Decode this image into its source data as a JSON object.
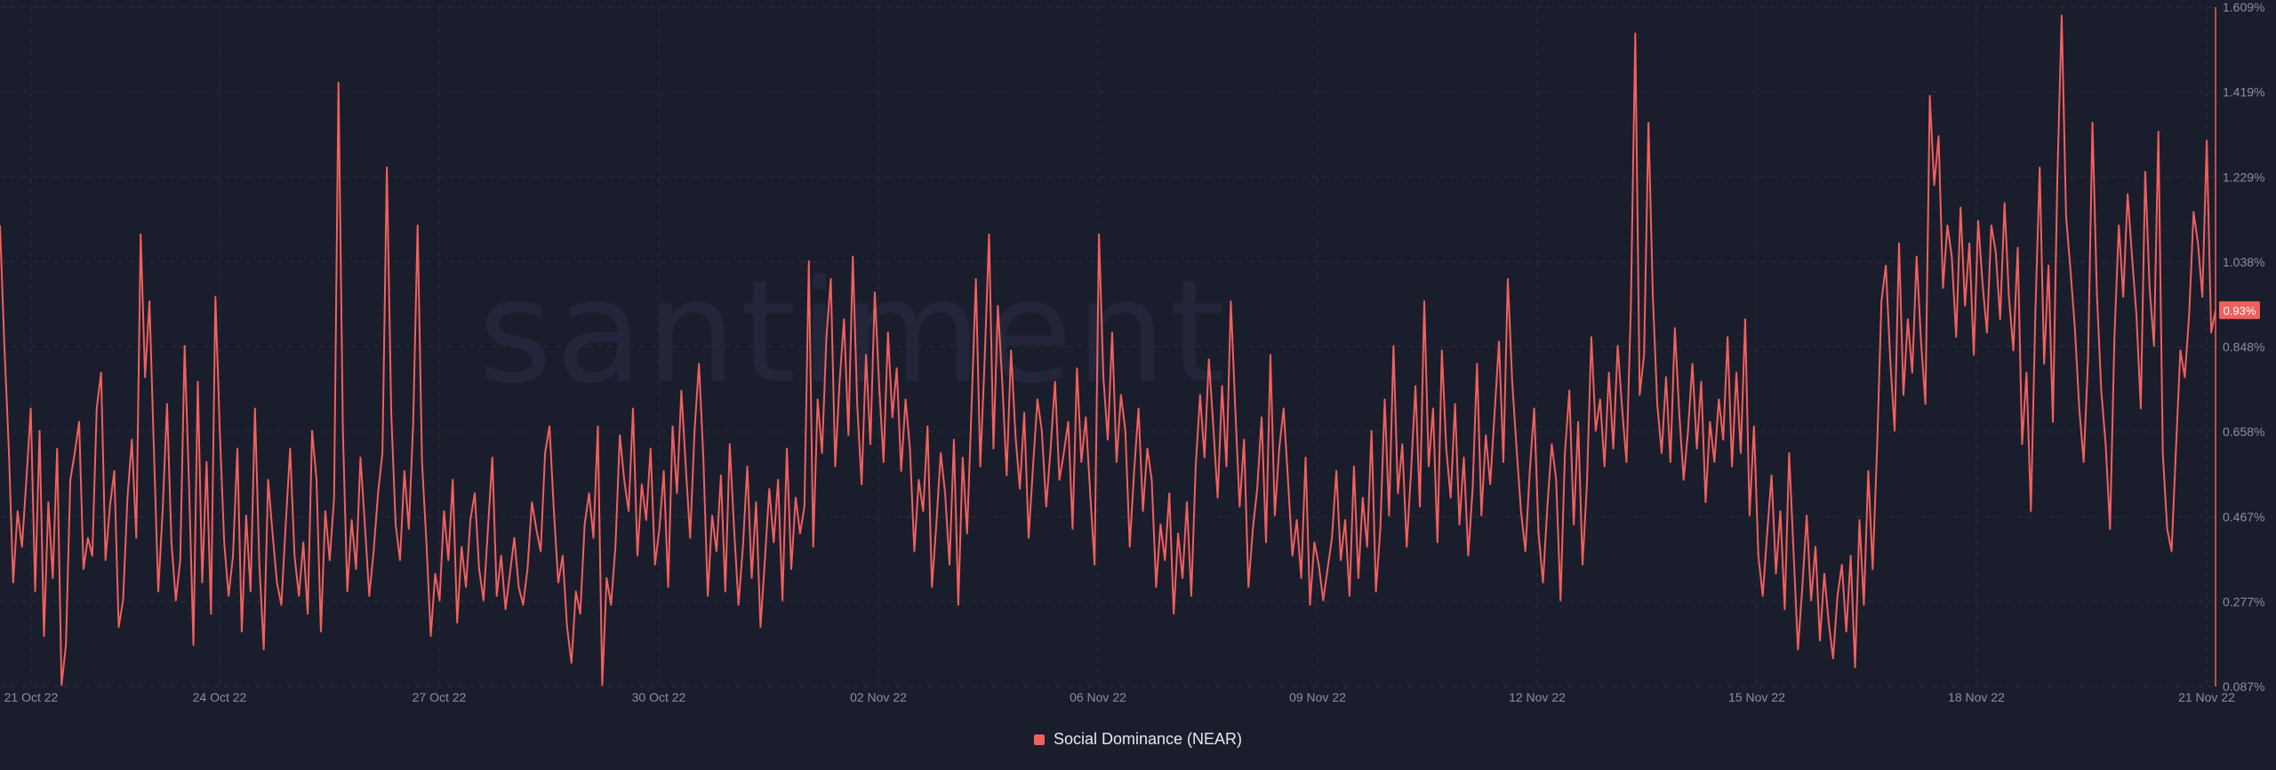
{
  "watermark": "santiment",
  "colors": {
    "background": "#1a1d2c",
    "series": "#f0605d",
    "grid": "#2a2e40",
    "axis_text": "#8a8fa3"
  },
  "chart_data": {
    "type": "line",
    "xlabel": "",
    "ylabel": "",
    "x_ticks": [
      "21 Oct 22",
      "24 Oct 22",
      "27 Oct 22",
      "30 Oct 22",
      "02 Nov 22",
      "06 Nov 22",
      "09 Nov 22",
      "12 Nov 22",
      "15 Nov 22",
      "18 Nov 22",
      "21 Nov 22"
    ],
    "y_ticks": [
      "1.609%",
      "1.419%",
      "1.229%",
      "1.038%",
      "0.848%",
      "0.658%",
      "0.467%",
      "0.277%",
      "0.087%"
    ],
    "ylim": [
      0.087,
      1.609
    ],
    "grid": true,
    "legend_position": "bottom-center",
    "current_value_label": "0.93%",
    "current_value": 0.93,
    "series": [
      {
        "name": "Social Dominance (NEAR)",
        "color": "#f0605d",
        "values": [
          1.12,
          0.85,
          0.62,
          0.32,
          0.48,
          0.4,
          0.55,
          0.71,
          0.3,
          0.66,
          0.2,
          0.5,
          0.33,
          0.62,
          0.09,
          0.18,
          0.55,
          0.61,
          0.68,
          0.35,
          0.42,
          0.38,
          0.71,
          0.79,
          0.37,
          0.49,
          0.57,
          0.22,
          0.28,
          0.51,
          0.64,
          0.42,
          1.1,
          0.78,
          0.95,
          0.62,
          0.3,
          0.48,
          0.72,
          0.41,
          0.28,
          0.37,
          0.85,
          0.54,
          0.18,
          0.77,
          0.32,
          0.59,
          0.25,
          0.96,
          0.66,
          0.41,
          0.29,
          0.38,
          0.62,
          0.21,
          0.47,
          0.3,
          0.71,
          0.36,
          0.17,
          0.55,
          0.43,
          0.32,
          0.27,
          0.45,
          0.62,
          0.38,
          0.29,
          0.41,
          0.25,
          0.66,
          0.55,
          0.21,
          0.48,
          0.37,
          0.51,
          1.44,
          0.66,
          0.3,
          0.46,
          0.35,
          0.6,
          0.45,
          0.29,
          0.39,
          0.52,
          0.61,
          1.25,
          0.7,
          0.45,
          0.37,
          0.57,
          0.44,
          0.68,
          1.12,
          0.59,
          0.41,
          0.2,
          0.34,
          0.28,
          0.48,
          0.37,
          0.55,
          0.23,
          0.4,
          0.31,
          0.46,
          0.52,
          0.35,
          0.28,
          0.44,
          0.6,
          0.29,
          0.38,
          0.26,
          0.34,
          0.42,
          0.31,
          0.27,
          0.35,
          0.5,
          0.44,
          0.39,
          0.61,
          0.67,
          0.48,
          0.32,
          0.38,
          0.22,
          0.14,
          0.3,
          0.25,
          0.45,
          0.52,
          0.42,
          0.67,
          0.09,
          0.33,
          0.27,
          0.4,
          0.65,
          0.55,
          0.48,
          0.71,
          0.38,
          0.54,
          0.46,
          0.62,
          0.36,
          0.44,
          0.57,
          0.31,
          0.67,
          0.52,
          0.75,
          0.58,
          0.42,
          0.66,
          0.81,
          0.6,
          0.29,
          0.47,
          0.39,
          0.56,
          0.3,
          0.63,
          0.44,
          0.27,
          0.4,
          0.58,
          0.33,
          0.5,
          0.22,
          0.37,
          0.53,
          0.41,
          0.55,
          0.28,
          0.62,
          0.35,
          0.51,
          0.43,
          0.49,
          1.04,
          0.4,
          0.73,
          0.61,
          0.87,
          1.0,
          0.58,
          0.77,
          0.91,
          0.65,
          1.05,
          0.72,
          0.54,
          0.83,
          0.63,
          0.97,
          0.76,
          0.59,
          0.88,
          0.69,
          0.8,
          0.57,
          0.73,
          0.62,
          0.39,
          0.55,
          0.48,
          0.67,
          0.31,
          0.45,
          0.61,
          0.52,
          0.36,
          0.64,
          0.27,
          0.6,
          0.43,
          0.71,
          1.0,
          0.58,
          0.82,
          1.1,
          0.62,
          0.94,
          0.77,
          0.56,
          0.84,
          0.65,
          0.53,
          0.7,
          0.42,
          0.58,
          0.73,
          0.66,
          0.49,
          0.62,
          0.77,
          0.55,
          0.61,
          0.68,
          0.44,
          0.8,
          0.59,
          0.69,
          0.52,
          0.36,
          1.1,
          0.78,
          0.64,
          0.88,
          0.59,
          0.74,
          0.66,
          0.4,
          0.57,
          0.71,
          0.48,
          0.62,
          0.55,
          0.31,
          0.45,
          0.37,
          0.52,
          0.25,
          0.43,
          0.33,
          0.5,
          0.29,
          0.58,
          0.74,
          0.6,
          0.82,
          0.67,
          0.51,
          0.76,
          0.58,
          0.95,
          0.71,
          0.49,
          0.64,
          0.31,
          0.44,
          0.53,
          0.69,
          0.41,
          0.83,
          0.47,
          0.62,
          0.71,
          0.55,
          0.38,
          0.46,
          0.33,
          0.6,
          0.27,
          0.41,
          0.36,
          0.28,
          0.35,
          0.42,
          0.57,
          0.37,
          0.46,
          0.29,
          0.58,
          0.33,
          0.51,
          0.4,
          0.66,
          0.3,
          0.44,
          0.73,
          0.47,
          0.85,
          0.52,
          0.63,
          0.4,
          0.57,
          0.76,
          0.49,
          0.95,
          0.58,
          0.71,
          0.41,
          0.84,
          0.62,
          0.51,
          0.72,
          0.45,
          0.6,
          0.38,
          0.53,
          0.81,
          0.47,
          0.65,
          0.54,
          0.7,
          0.86,
          0.59,
          1.0,
          0.77,
          0.62,
          0.48,
          0.39,
          0.57,
          0.71,
          0.43,
          0.32,
          0.49,
          0.63,
          0.55,
          0.28,
          0.61,
          0.75,
          0.45,
          0.68,
          0.36,
          0.54,
          0.87,
          0.66,
          0.73,
          0.58,
          0.79,
          0.62,
          0.85,
          0.71,
          0.59,
          0.94,
          1.55,
          0.74,
          0.83,
          1.35,
          0.96,
          0.72,
          0.61,
          0.78,
          0.59,
          0.89,
          0.7,
          0.55,
          0.66,
          0.81,
          0.62,
          0.77,
          0.5,
          0.68,
          0.59,
          0.73,
          0.64,
          0.87,
          0.58,
          0.79,
          0.61,
          0.91,
          0.47,
          0.67,
          0.38,
          0.29,
          0.43,
          0.56,
          0.34,
          0.48,
          0.26,
          0.61,
          0.39,
          0.17,
          0.31,
          0.47,
          0.28,
          0.4,
          0.19,
          0.34,
          0.23,
          0.15,
          0.29,
          0.36,
          0.21,
          0.38,
          0.13,
          0.46,
          0.27,
          0.57,
          0.35,
          0.62,
          0.95,
          1.03,
          0.82,
          0.66,
          1.08,
          0.74,
          0.91,
          0.79,
          1.05,
          0.86,
          0.72,
          1.41,
          1.21,
          1.32,
          0.98,
          1.12,
          1.05,
          0.87,
          1.16,
          0.94,
          1.08,
          0.83,
          1.13,
          0.99,
          0.88,
          1.12,
          1.06,
          0.91,
          1.17,
          0.96,
          0.84,
          1.07,
          0.63,
          0.79,
          0.48,
          0.92,
          1.25,
          0.81,
          1.03,
          0.68,
          1.22,
          1.59,
          1.14,
          1.02,
          0.89,
          0.71,
          0.59,
          0.82,
          1.35,
          0.97,
          0.75,
          0.63,
          0.44,
          0.87,
          1.12,
          0.96,
          1.19,
          1.05,
          0.92,
          0.71,
          1.24,
          0.98,
          0.85,
          1.33,
          0.61,
          0.44,
          0.39,
          0.62,
          0.84,
          0.78,
          0.92,
          1.15,
          1.08,
          0.96,
          1.31,
          0.88,
          0.93
        ]
      }
    ]
  }
}
